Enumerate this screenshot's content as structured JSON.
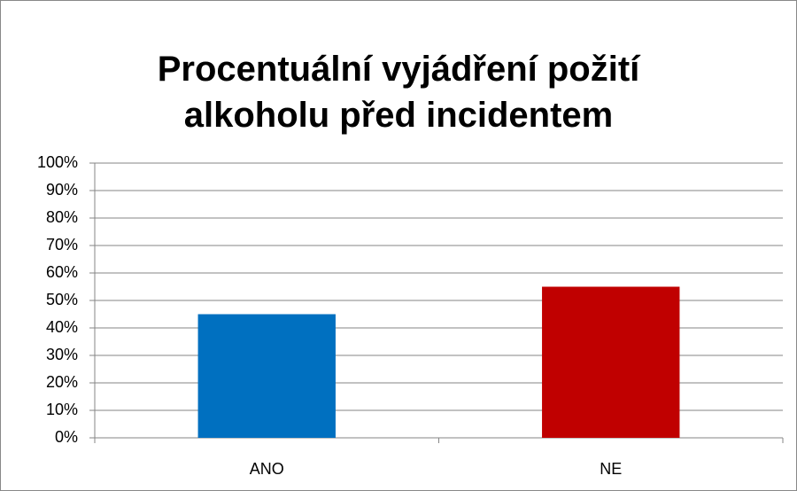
{
  "chart_data": {
    "type": "bar",
    "title": "Procentuální vyjádření požití alkoholu před incidentem",
    "categories": [
      "ANO",
      "NE"
    ],
    "values": [
      45,
      55
    ],
    "colors": [
      "#0070c0",
      "#c00000"
    ],
    "ylim": [
      0,
      100
    ],
    "yticks": [
      {
        "value": 0,
        "label": "0%"
      },
      {
        "value": 10,
        "label": "10%"
      },
      {
        "value": 20,
        "label": "20%"
      },
      {
        "value": 30,
        "label": "30%"
      },
      {
        "value": 40,
        "label": "40%"
      },
      {
        "value": 50,
        "label": "50%"
      },
      {
        "value": 60,
        "label": "60%"
      },
      {
        "value": 70,
        "label": "70%"
      },
      {
        "value": 80,
        "label": "80%"
      },
      {
        "value": 90,
        "label": "90%"
      },
      {
        "value": 100,
        "label": "100%"
      }
    ],
    "grid": true
  }
}
